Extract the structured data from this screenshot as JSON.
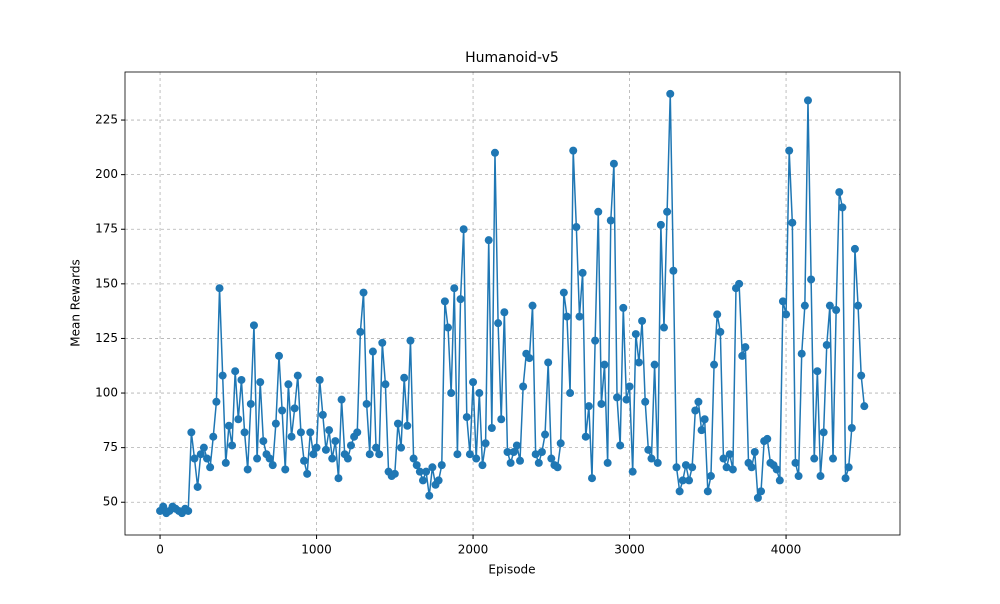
{
  "chart_data": {
    "type": "line",
    "title": "Humanoid-v5",
    "x_label": "Episode",
    "y_label": "Mean Rewards",
    "color": "#1f77b4",
    "grid": true,
    "markers": true,
    "x": [
      0,
      20,
      40,
      60,
      80,
      100,
      120,
      140,
      160,
      180,
      200,
      220,
      240,
      260,
      280,
      300,
      320,
      340,
      360,
      380,
      400,
      420,
      440,
      460,
      480,
      500,
      520,
      540,
      560,
      580,
      600,
      620,
      640,
      660,
      680,
      700,
      720,
      740,
      760,
      780,
      800,
      820,
      840,
      860,
      880,
      900,
      920,
      940,
      960,
      980,
      1000,
      1020,
      1040,
      1060,
      1080,
      1100,
      1120,
      1140,
      1160,
      1180,
      1200,
      1220,
      1240,
      1260,
      1280,
      1300,
      1320,
      1340,
      1360,
      1380,
      1400,
      1420,
      1440,
      1460,
      1480,
      1500,
      1520,
      1540,
      1560,
      1580,
      1600,
      1620,
      1640,
      1660,
      1680,
      1700,
      1720,
      1740,
      1760,
      1780,
      1800,
      1820,
      1840,
      1860,
      1880,
      1900,
      1920,
      1940,
      1960,
      1980,
      2000,
      2020,
      2040,
      2060,
      2080,
      2100,
      2120,
      2140,
      2160,
      2180,
      2200,
      2220,
      2240,
      2260,
      2280,
      2300,
      2320,
      2340,
      2360,
      2380,
      2400,
      2420,
      2440,
      2460,
      2480,
      2500,
      2520,
      2540,
      2560,
      2580,
      2600,
      2620,
      2640,
      2660,
      2680,
      2700,
      2720,
      2740,
      2760,
      2780,
      2800,
      2820,
      2840,
      2860,
      2880,
      2900,
      2920,
      2940,
      2960,
      2980,
      3000,
      3020,
      3040,
      3060,
      3080,
      3100,
      3120,
      3140,
      3160,
      3180,
      3200,
      3220,
      3240,
      3260,
      3280,
      3300,
      3320,
      3340,
      3360,
      3380,
      3400,
      3420,
      3440,
      3460,
      3480,
      3500,
      3520,
      3540,
      3560,
      3580,
      3600,
      3620,
      3640,
      3660,
      3680,
      3700,
      3720,
      3740,
      3760,
      3780,
      3800,
      3820,
      3840,
      3860,
      3880,
      3900,
      3920,
      3940,
      3960,
      3980,
      4000,
      4020,
      4040,
      4060,
      4080,
      4100,
      4120,
      4140,
      4160,
      4180,
      4200,
      4220,
      4240,
      4260,
      4280,
      4300,
      4320,
      4340,
      4360,
      4380,
      4400,
      4420,
      4440,
      4460,
      4480,
      4500
    ],
    "values": [
      46,
      48,
      45,
      46,
      48,
      47,
      46,
      45,
      47,
      46,
      82,
      70,
      57,
      72,
      75,
      70,
      66,
      80,
      96,
      148,
      108,
      68,
      85,
      76,
      110,
      88,
      106,
      82,
      65,
      95,
      131,
      70,
      105,
      78,
      72,
      70,
      67,
      86,
      117,
      92,
      65,
      104,
      80,
      93,
      108,
      82,
      69,
      63,
      82,
      72,
      75,
      106,
      90,
      74,
      83,
      70,
      78,
      61,
      97,
      72,
      70,
      76,
      80,
      82,
      128,
      146,
      95,
      72,
      119,
      75,
      72,
      123,
      104,
      64,
      62,
      63,
      86,
      75,
      107,
      85,
      124,
      70,
      67,
      64,
      60,
      64,
      53,
      66,
      58,
      60,
      67,
      142,
      130,
      100,
      148,
      72,
      143,
      175,
      89,
      72,
      105,
      70,
      100,
      67,
      77,
      170,
      84,
      210,
      132,
      88,
      137,
      73,
      68,
      73,
      76,
      69,
      103,
      118,
      116,
      140,
      72,
      68,
      73,
      81,
      114,
      70,
      67,
      66,
      77,
      146,
      135,
      100,
      211,
      176,
      135,
      155,
      80,
      94,
      61,
      124,
      183,
      95,
      113,
      68,
      179,
      205,
      98,
      76,
      139,
      97,
      103,
      64,
      127,
      114,
      133,
      96,
      74,
      70,
      113,
      68,
      177,
      130,
      183,
      237,
      156,
      66,
      55,
      60,
      67,
      60,
      66,
      92,
      96,
      83,
      88,
      55,
      62,
      113,
      136,
      128,
      70,
      66,
      72,
      65,
      148,
      150,
      117,
      121,
      68,
      66,
      73,
      52,
      55,
      78,
      79,
      68,
      67,
      65,
      60,
      142,
      136,
      211,
      178,
      68,
      62,
      118,
      140,
      234,
      152,
      70,
      110,
      62,
      82,
      122,
      140,
      70,
      138,
      192,
      185,
      61,
      66,
      84,
      166,
      140,
      108,
      94
    ],
    "xlim": [
      -224,
      4728
    ],
    "ylim": [
      35,
      247
    ],
    "xticks": [
      0,
      1000,
      2000,
      3000,
      4000
    ],
    "yticks": [
      50,
      75,
      100,
      125,
      150,
      175,
      200,
      225
    ]
  }
}
